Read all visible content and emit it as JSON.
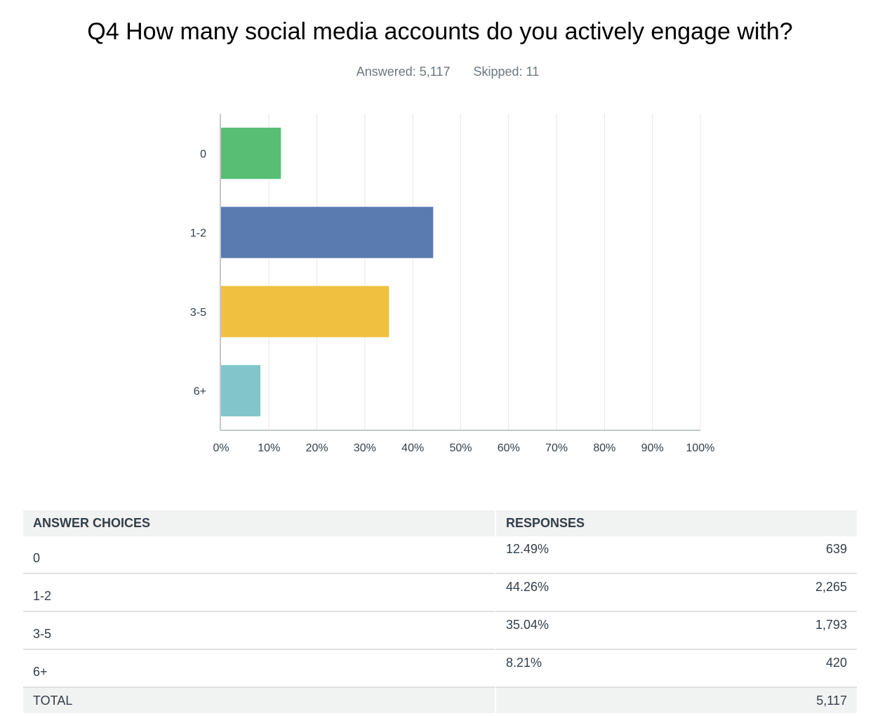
{
  "question": {
    "title": "Q4 How many social media accounts do you actively engage with?",
    "answered_label": "Answered: 5,117",
    "skipped_label": "Skipped: 11"
  },
  "chart_data": {
    "type": "bar",
    "orientation": "horizontal",
    "categories": [
      "0",
      "1-2",
      "3-5",
      "6+"
    ],
    "values": [
      12.49,
      44.26,
      35.04,
      8.21
    ],
    "colors": [
      "#57be74",
      "#5a7bb0",
      "#f0c040",
      "#82c6cb"
    ],
    "x_ticks": [
      "0%",
      "10%",
      "20%",
      "30%",
      "40%",
      "50%",
      "60%",
      "70%",
      "80%",
      "90%",
      "100%"
    ],
    "xlim": [
      0,
      100
    ],
    "grid": true,
    "legend": "none"
  },
  "table": {
    "headers": {
      "choices": "ANSWER CHOICES",
      "responses": "RESPONSES"
    },
    "rows": [
      {
        "choice": "0",
        "percent": "12.49%",
        "count": "639"
      },
      {
        "choice": "1-2",
        "percent": "44.26%",
        "count": "2,265"
      },
      {
        "choice": "3-5",
        "percent": "35.04%",
        "count": "1,793"
      },
      {
        "choice": "6+",
        "percent": "8.21%",
        "count": "420"
      }
    ],
    "total": {
      "label": "TOTAL",
      "percent": "",
      "count": "5,117"
    }
  }
}
